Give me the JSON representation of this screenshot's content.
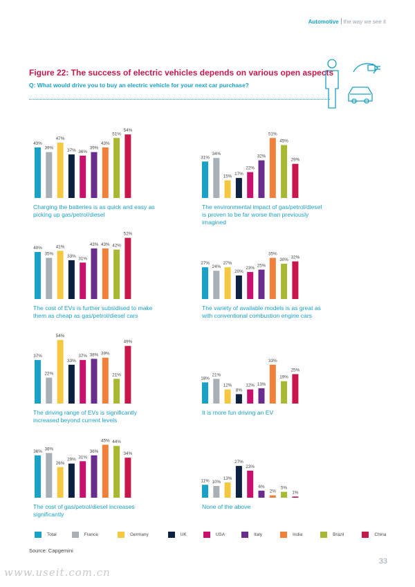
{
  "header": {
    "brand": "Automotive",
    "tagline": "the way we see it"
  },
  "figure_title": "Figure 22: The success of electric vehicles depends on various open aspects",
  "question": "Q: What would drive you to buy an electric vehicle for your next car purchase?",
  "source": "Source: Capgemini",
  "page_number": "33",
  "watermark": "www.useit.com.cn",
  "colors": {
    "accent": "#1aa1c7",
    "title": "#c8174b",
    "series": [
      "#1aa1c7",
      "#a8b0b5",
      "#f5c842",
      "#0d2240",
      "#c8106e",
      "#6a2d8f",
      "#f0813a",
      "#a9b832",
      "#c8174b"
    ]
  },
  "chart_data": {
    "type": "bar",
    "categories": [
      "Total",
      "France",
      "Germany",
      "UK",
      "USA",
      "Italy",
      "India",
      "Brazil",
      "China"
    ],
    "ylim": [
      0,
      60
    ],
    "charts": [
      {
        "caption": "Charging the batteries is as quick and easy as picking up gas/petrol/diesel",
        "values": [
          43,
          39,
          47,
          37,
          36,
          39,
          43,
          51,
          54
        ]
      },
      {
        "caption": "The environmental impact of gas/petrol/diesel is proven to be far worse than previously imagined",
        "values": [
          31,
          34,
          15,
          17,
          22,
          32,
          51,
          45,
          29
        ]
      },
      {
        "caption": "The cost of EVs is further subsidised to make them as cheap as gas/petrol/diesel cars",
        "values": [
          40,
          35,
          41,
          33,
          31,
          43,
          43,
          42,
          52
        ]
      },
      {
        "caption": "The variety of available models is as great as with conventional combustion engine cars",
        "values": [
          27,
          24,
          27,
          20,
          23,
          25,
          35,
          30,
          32
        ]
      },
      {
        "caption": "The driving range of EVs is significantly increased beyond current levels",
        "values": [
          37,
          22,
          54,
          33,
          37,
          38,
          39,
          21,
          49
        ]
      },
      {
        "caption": "It is more fun driving an EV",
        "values": [
          18,
          21,
          12,
          8,
          12,
          13,
          33,
          19,
          25
        ]
      },
      {
        "caption": "The cost of gas/petrol/diesel increases significantly",
        "values": [
          36,
          38,
          26,
          29,
          31,
          36,
          45,
          44,
          34
        ]
      },
      {
        "caption": "None of the above",
        "values": [
          11,
          10,
          13,
          27,
          23,
          6,
          2,
          5,
          1
        ]
      }
    ]
  }
}
